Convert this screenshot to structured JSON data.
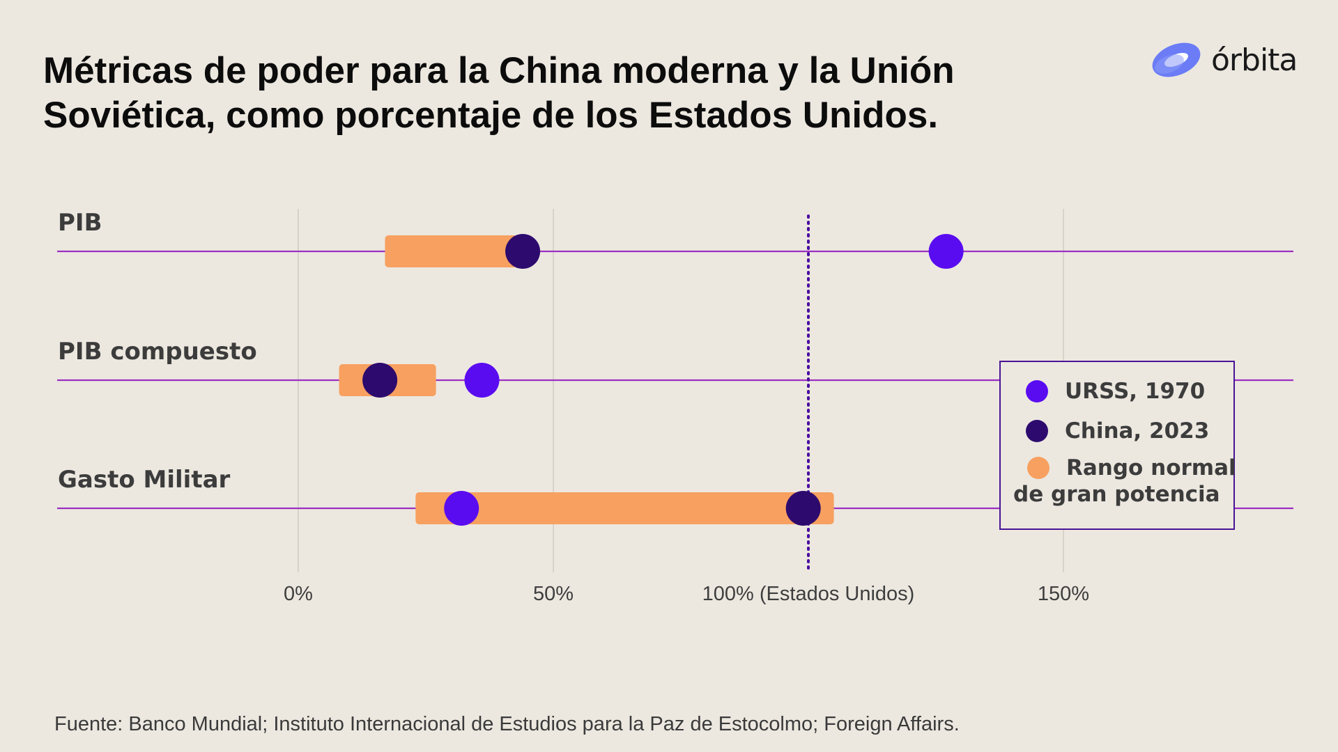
{
  "header": {
    "title_line1": "Métricas de poder para la China moderna y la Unión",
    "title_line2": "Soviética, como porcentaje de los Estados Unidos.",
    "brand_name": "órbita",
    "brand_icon": "orbit-logo-icon"
  },
  "source": "Fuente: Banco Mundial; Instituto Internacional de Estudios para la Paz de Estocolmo; Foreign Affairs.",
  "legend": {
    "ussr": "URSS, 1970",
    "china": "China, 2023",
    "range_line1": "Rango normal",
    "range_line2": "de gran potencia"
  },
  "colors": {
    "ussr": "#5a0cf0",
    "china": "#2d0a6e",
    "range": "#f7a060",
    "track": "#9b2fc0",
    "reference": "#4a0aa0",
    "grid": "#d8d2c8",
    "legend_border": "#4a1295"
  },
  "chart_data": {
    "type": "dot-range",
    "title": "Métricas de poder para la China moderna y la Unión Soviética, como porcentaje de los Estados Unidos.",
    "x_unit": "%",
    "xlim": [
      -47,
      195
    ],
    "x_ticks": [
      {
        "value": 0,
        "label": "0%"
      },
      {
        "value": 50,
        "label": "50%"
      },
      {
        "value": 100,
        "label": "100% (Estados Unidos)"
      },
      {
        "value": 150,
        "label": "150%"
      }
    ],
    "reference_line": {
      "value": 100,
      "style": "dotted"
    },
    "grid": true,
    "legend_position": "right",
    "categories": [
      "PIB",
      "PIB compuesto",
      "Gasto Militar"
    ],
    "ranges": [
      {
        "category": "PIB",
        "low": 17,
        "high": 43
      },
      {
        "category": "PIB compuesto",
        "low": 8,
        "high": 27
      },
      {
        "category": "Gasto Militar",
        "low": 23,
        "high": 105
      }
    ],
    "series": [
      {
        "name": "URSS, 1970",
        "values": [
          127,
          36,
          32
        ]
      },
      {
        "name": "China, 2023",
        "values": [
          44,
          16,
          99
        ]
      }
    ]
  }
}
